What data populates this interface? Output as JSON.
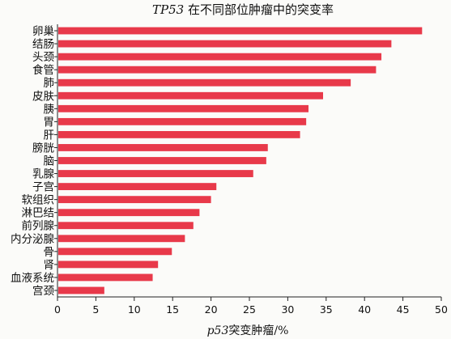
{
  "chart_data": {
    "type": "bar",
    "orientation": "horizontal",
    "title_gene": "TP53",
    "title_rest": " 在不同部位肿瘤中的突变率",
    "xlabel_gene": "p53",
    "xlabel_rest": "突变肿瘤/%",
    "categories": [
      "卵巢",
      "结肠",
      "头颈",
      "食管",
      "肺",
      "皮肤",
      "胰",
      "胃",
      "肝",
      "膀胱",
      "脑",
      "乳腺",
      "子宫",
      "软组织",
      "淋巴结",
      "前列腺",
      "内分泌腺",
      "骨",
      "肾",
      "血液系统",
      "宫颈"
    ],
    "values": [
      47.5,
      43.5,
      42.2,
      41.5,
      38.2,
      34.6,
      32.7,
      32.4,
      31.6,
      27.4,
      27.2,
      25.5,
      20.7,
      20.0,
      18.5,
      17.7,
      16.6,
      14.9,
      13.1,
      12.4,
      6.1
    ],
    "xlim": [
      0,
      50
    ],
    "xticks": [
      "0",
      "5",
      "10",
      "15",
      "20",
      "25",
      "30",
      "35",
      "40",
      "45",
      "50"
    ],
    "bar_color": "#e8394a",
    "grid": false
  }
}
